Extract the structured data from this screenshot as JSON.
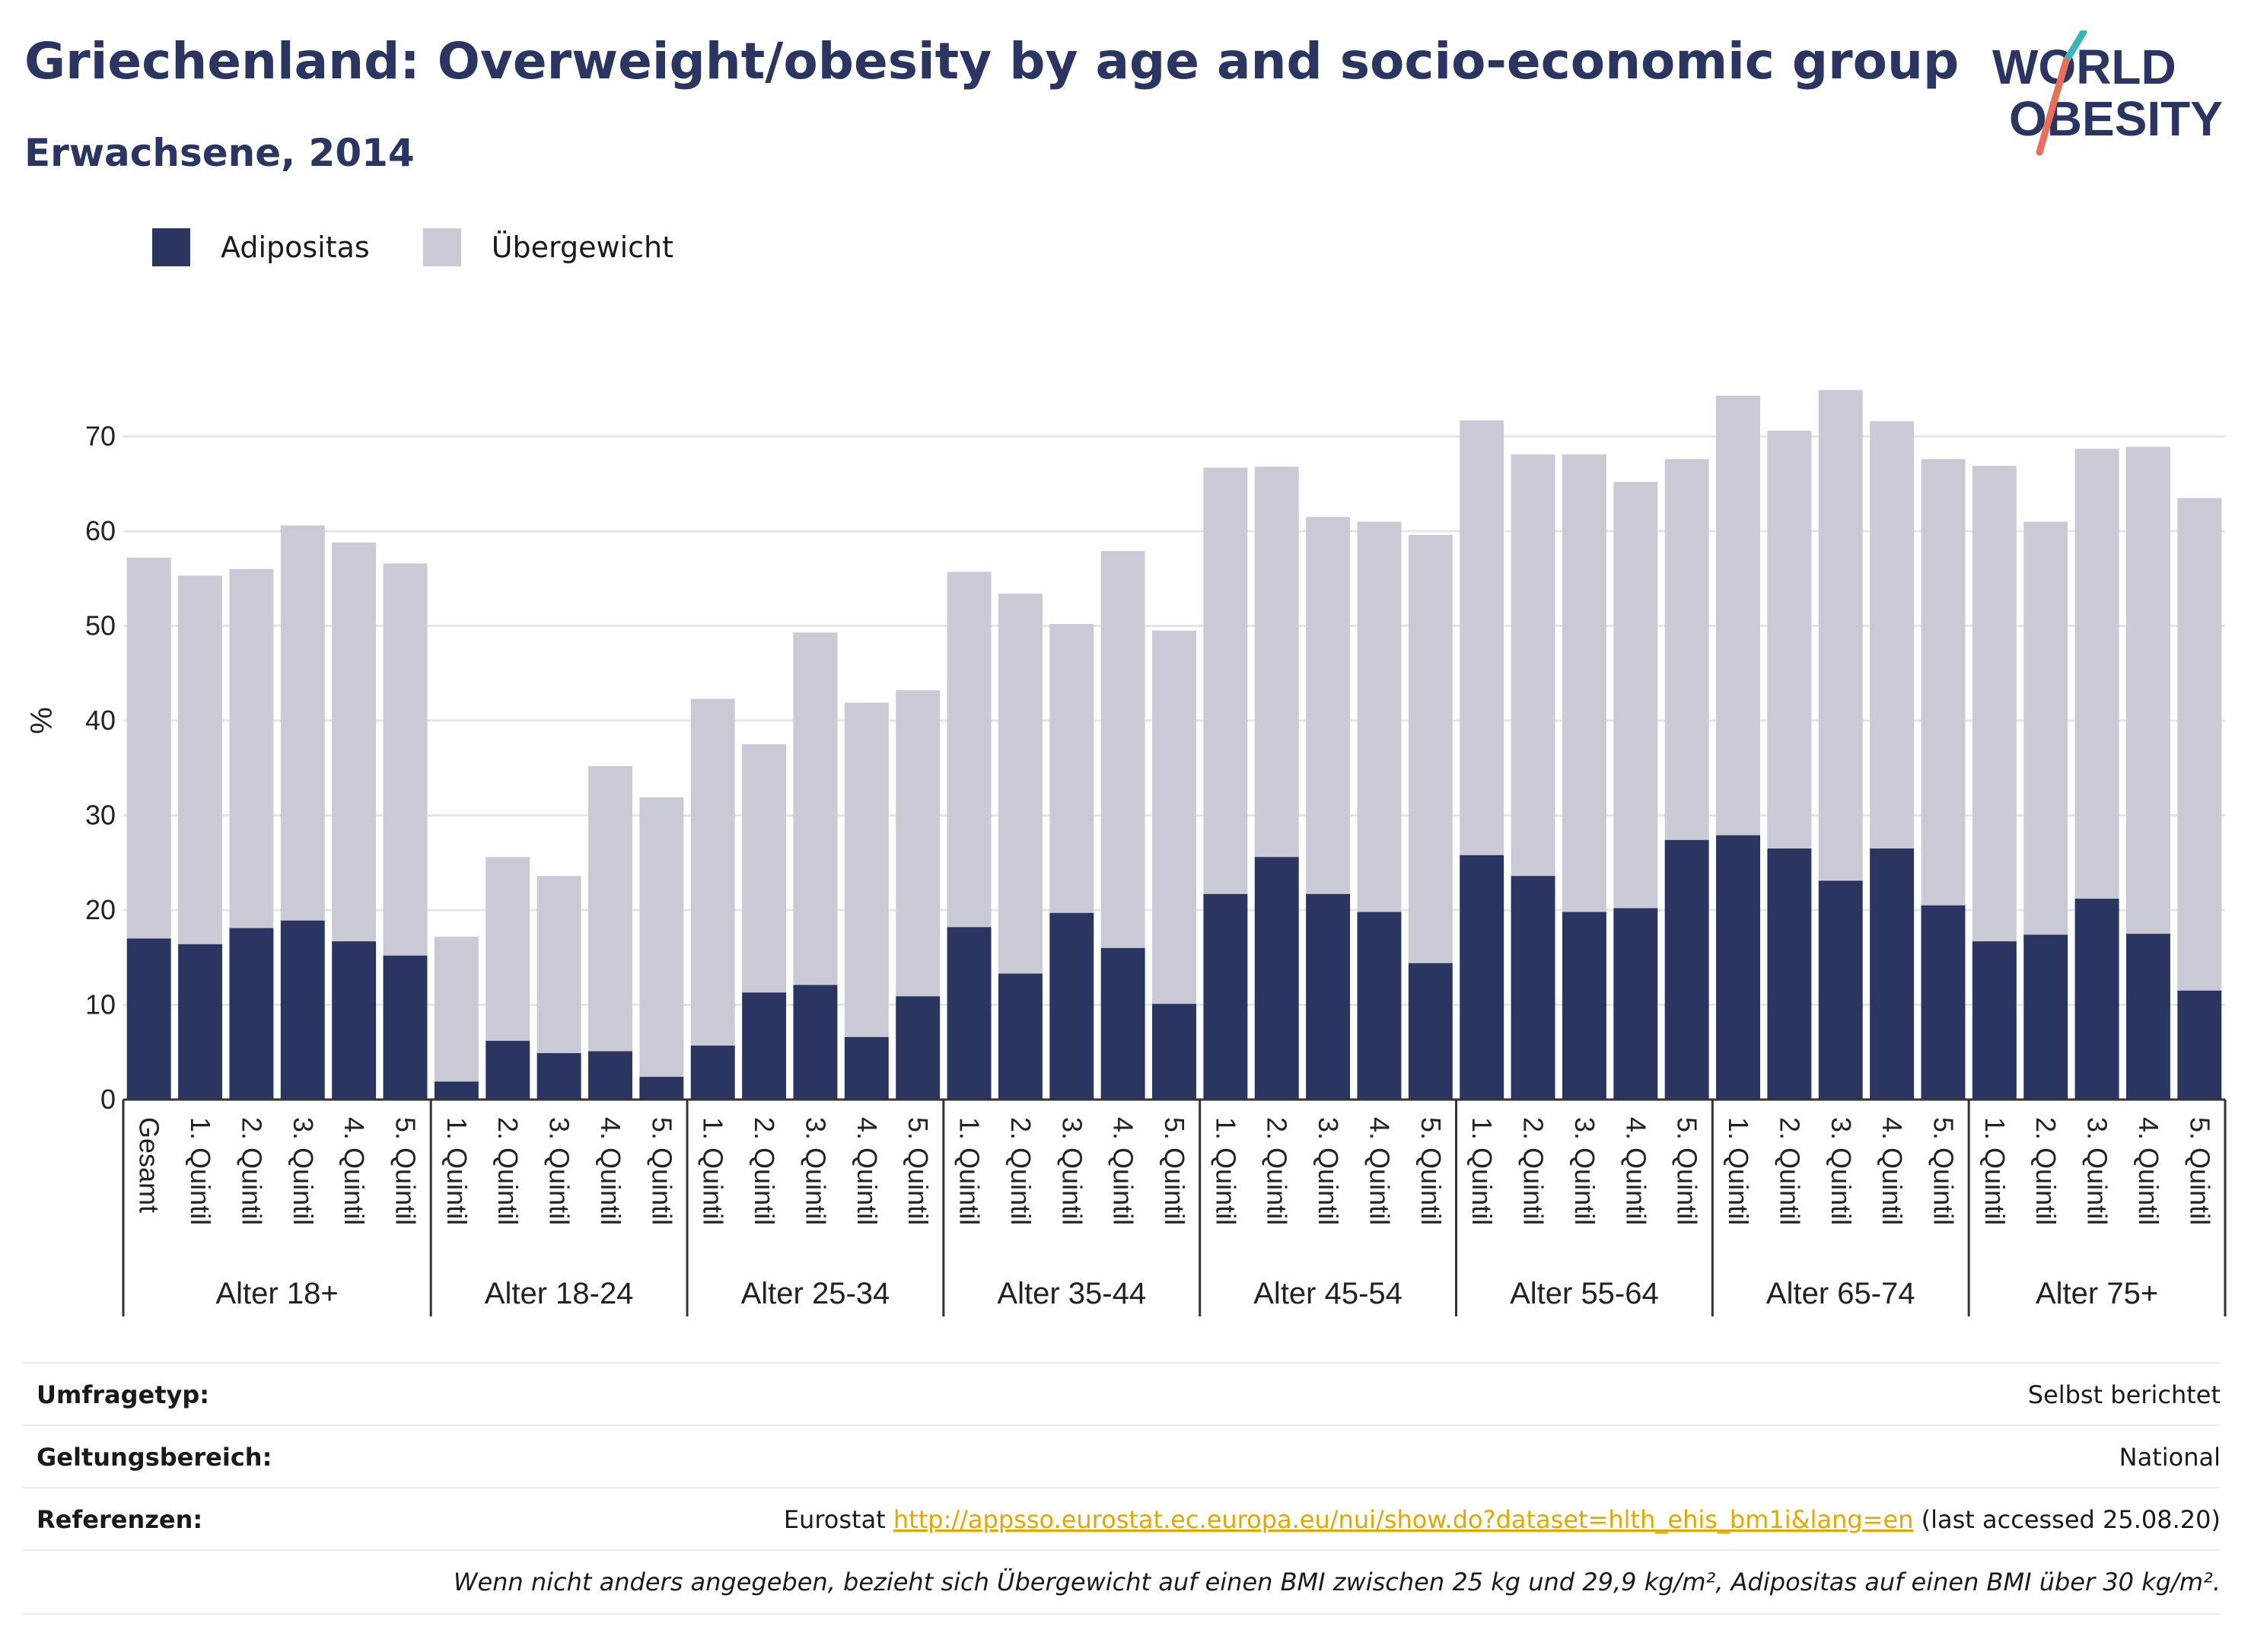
{
  "header": {
    "title": "Griechenland: Overweight/obesity by age and socio-economic group",
    "subtitle": "Erwachsene, 2014",
    "logo_line1": "WORLD",
    "logo_line2": "OBESITY"
  },
  "colors": {
    "obesity": "#2a3561",
    "overweight": "#c9cad6",
    "gridline": "#e6e6e6",
    "title": "#2a3561",
    "link": "#e0a800"
  },
  "chart_data": {
    "type": "bar",
    "stacked": true,
    "title": "Griechenland: Overweight/obesity by age and socio-economic group",
    "subtitle": "Erwachsene, 2014",
    "ylabel": "%",
    "ylim": [
      0,
      75
    ],
    "yticks": [
      0,
      10,
      20,
      30,
      40,
      50,
      60,
      70
    ],
    "grid": true,
    "legend_position": "top-left",
    "legend": [
      "Adipositas",
      "Übergewicht"
    ],
    "groups": [
      {
        "label": "Alter 18+",
        "categories": [
          "Gesamt",
          "1. Quintil",
          "2. Quintil",
          "3. Quintil",
          "4. Quintil",
          "5. Quintil"
        ],
        "obesity": [
          17.0,
          16.4,
          18.1,
          18.9,
          16.7,
          15.2
        ],
        "total": [
          57.2,
          55.3,
          56.0,
          60.6,
          58.8,
          56.6
        ]
      },
      {
        "label": "Alter 18-24",
        "categories": [
          "1. Quintil",
          "2. Quintil",
          "3. Quintil",
          "4. Quintil",
          "5. Quintil"
        ],
        "obesity": [
          1.9,
          6.2,
          4.9,
          5.1,
          2.4
        ],
        "total": [
          17.2,
          25.6,
          23.6,
          35.2,
          31.9
        ]
      },
      {
        "label": "Alter 25-34",
        "categories": [
          "1. Quintil",
          "2. Quintil",
          "3. Quintil",
          "4. Quintil",
          "5. Quintil"
        ],
        "obesity": [
          5.7,
          11.3,
          12.1,
          6.6,
          10.9
        ],
        "total": [
          42.3,
          37.5,
          49.3,
          41.9,
          43.2
        ]
      },
      {
        "label": "Alter 35-44",
        "categories": [
          "1. Quintil",
          "2. Quintil",
          "3. Quintil",
          "4. Quintil",
          "5. Quintil"
        ],
        "obesity": [
          18.2,
          13.3,
          19.7,
          16.0,
          10.1
        ],
        "total": [
          55.7,
          53.4,
          50.2,
          57.9,
          49.5
        ]
      },
      {
        "label": "Alter 45-54",
        "categories": [
          "1. Quintil",
          "2. Quintil",
          "3. Quintil",
          "4. Quintil",
          "5. Quintil"
        ],
        "obesity": [
          21.7,
          25.6,
          21.7,
          19.8,
          14.4
        ],
        "total": [
          66.7,
          66.8,
          61.5,
          61.0,
          59.6
        ]
      },
      {
        "label": "Alter 55-64",
        "categories": [
          "1. Quintil",
          "2. Quintil",
          "3. Quintil",
          "4. Quintil",
          "5. Quintil"
        ],
        "obesity": [
          25.8,
          23.6,
          19.8,
          20.2,
          27.4
        ],
        "total": [
          71.7,
          68.1,
          68.1,
          65.2,
          67.6
        ]
      },
      {
        "label": "Alter 65-74",
        "categories": [
          "1. Quintil",
          "2. Quintil",
          "3. Quintil",
          "4. Quintil",
          "5. Quintil"
        ],
        "obesity": [
          27.9,
          26.5,
          23.1,
          26.5,
          20.5
        ],
        "total": [
          74.3,
          70.6,
          74.9,
          71.6,
          67.6
        ]
      },
      {
        "label": "Alter 75+",
        "categories": [
          "1. Quintil",
          "2. Quintil",
          "3. Quintil",
          "4. Quintil",
          "5. Quintil"
        ],
        "obesity": [
          16.7,
          17.4,
          21.2,
          17.5,
          11.5
        ],
        "total": [
          66.9,
          61.0,
          68.7,
          68.9,
          63.5
        ]
      }
    ]
  },
  "info": {
    "survey_type_label": "Umfragetyp:",
    "survey_type_value": "Selbst berichtet",
    "scope_label": "Geltungsbereich:",
    "scope_value": "National",
    "references_label": "Referenzen:",
    "references_prefix": "Eurostat ",
    "references_link": "http://appsso.eurostat.ec.europa.eu/nui/show.do?dataset=hlth_ehis_bm1i&lang=en",
    "references_suffix": " (last accessed 25.08.20)",
    "note": "Wenn nicht anders angegeben, bezieht sich Übergewicht auf einen BMI zwischen 25 kg und 29,9 kg/m², Adipositas auf einen BMI über 30 kg/m²."
  }
}
